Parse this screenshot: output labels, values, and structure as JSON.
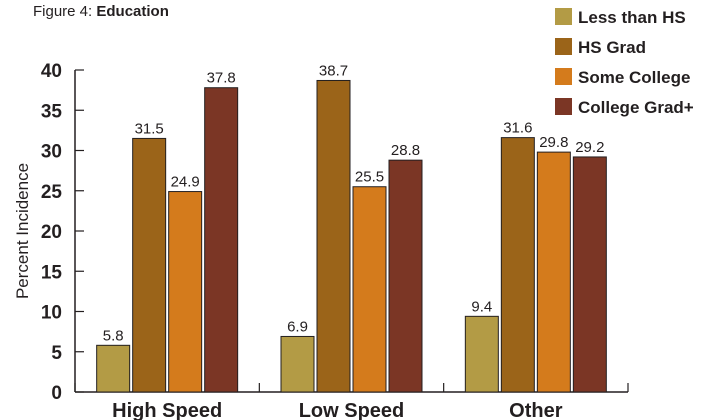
{
  "figure": {
    "label": "Figure 4:",
    "title": "Education"
  },
  "chart_data": {
    "type": "bar",
    "title": "Education",
    "xlabel": "",
    "ylabel": "Percent Incidence",
    "ylim": [
      0,
      40
    ],
    "yticks": [
      0,
      5,
      10,
      15,
      20,
      25,
      30,
      35,
      40
    ],
    "categories": [
      "High Speed",
      "Low Speed",
      "Other"
    ],
    "series": [
      {
        "name": "Less than HS",
        "color": "#b39b45",
        "values": [
          5.8,
          6.9,
          9.4
        ]
      },
      {
        "name": "HS Grad",
        "color": "#9b6419",
        "values": [
          31.5,
          38.7,
          31.6
        ]
      },
      {
        "name": "Some College",
        "color": "#d47b1c",
        "values": [
          24.9,
          25.5,
          29.8
        ]
      },
      {
        "name": "College Grad+",
        "color": "#7b3625",
        "values": [
          37.8,
          28.8,
          29.2
        ]
      }
    ],
    "grid": false,
    "legend": "top-right"
  }
}
